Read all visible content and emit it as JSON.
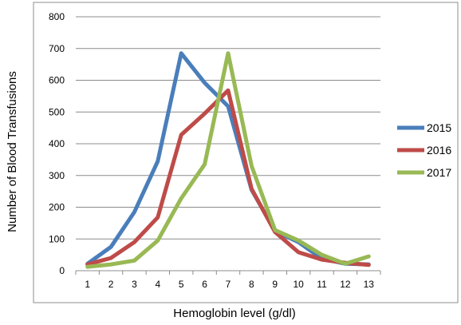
{
  "chart_data": {
    "type": "line",
    "title": "",
    "xlabel": "Hemoglobin level (g/dl)",
    "ylabel": "Number of Blood Transfusions",
    "x": [
      1,
      2,
      3,
      4,
      5,
      6,
      7,
      8,
      9,
      10,
      11,
      12,
      13
    ],
    "xlim": [
      1,
      13
    ],
    "ylim": [
      0,
      800
    ],
    "yticks": [
      0,
      100,
      200,
      300,
      400,
      500,
      600,
      700,
      800
    ],
    "grid": "horizontal",
    "legend": "right",
    "series": [
      {
        "name": "2015",
        "color": "#4A7EBB",
        "values": [
          22,
          75,
          185,
          345,
          685,
          592,
          518,
          255,
          125,
          90,
          38,
          22,
          20
        ]
      },
      {
        "name": "2016",
        "color": "#BE4B48",
        "values": [
          20,
          40,
          90,
          168,
          428,
          495,
          568,
          258,
          122,
          58,
          35,
          25,
          18
        ]
      },
      {
        "name": "2017",
        "color": "#98B954",
        "values": [
          12,
          20,
          32,
          95,
          228,
          335,
          685,
          330,
          128,
          95,
          50,
          22,
          45
        ]
      }
    ]
  }
}
